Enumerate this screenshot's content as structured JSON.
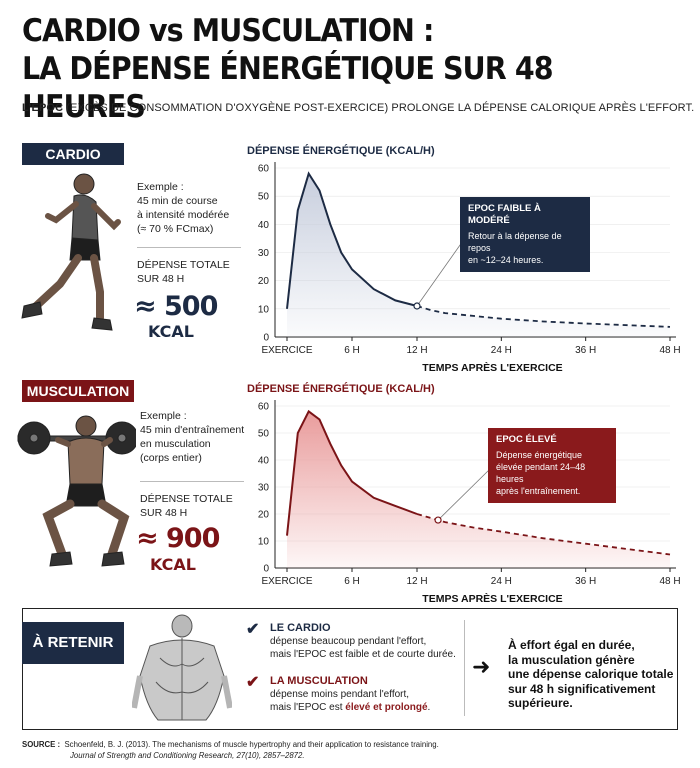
{
  "header": {
    "title_line1": "CARDIO vs MUSCULATION :",
    "title_line2": "LA DÉPENSE ÉNERGÉTIQUE SUR 48 HEURES",
    "subtitle_bold": "L'EPOC",
    "subtitle_rest": " (EXCÈS DE CONSOMMATION D'OXYGÈNE POST-EXERCICE) PROLONGE LA DÉPENSE CALORIQUE APRÈS L'EFFORT."
  },
  "colors": {
    "navy": "#1d2b44",
    "red": "#7b1417",
    "navy_fill": "#c5ccdc",
    "red_fill": "#e89797"
  },
  "cardio": {
    "tag": "CARDIO",
    "example_lines": [
      "Exemple :",
      "45 min de course",
      "à intensité modérée",
      "(≈ 70 % FCmax)"
    ],
    "total_label_lines": [
      "DÉPENSE TOTALE",
      "SUR 48 H"
    ],
    "total_value": "≈ 500",
    "total_unit": "KCAL",
    "illustration": "runner-illustration",
    "callout_title": "EPOC FAIBLE À MODÉRÉ",
    "callout_lines": [
      "Retour à la dépense de repos",
      "en ~12–24 heures."
    ]
  },
  "musculation": {
    "tag": "MUSCULATION",
    "example_lines": [
      "Exemple :",
      "45 min d'entraînement",
      "en musculation",
      "(corps entier)"
    ],
    "total_label_lines": [
      "DÉPENSE TOTALE",
      "SUR 48 H"
    ],
    "total_value": "≈ 900",
    "total_unit": "KCAL",
    "illustration": "squat-illustration",
    "callout_title": "EPOC ÉLEVÉ",
    "callout_lines": [
      "Dépense énergétique",
      "élevée pendant 24–48 heures",
      "après l'entraînement."
    ]
  },
  "chart_data": [
    {
      "type": "area",
      "ylabel": "DÉPENSE ÉNERGÉTIQUE (KCAL/H)",
      "xlabel": "TEMPS APRÈS L'EXERCICE",
      "x_ticks": [
        0,
        6,
        12,
        24,
        36,
        48
      ],
      "x_tick_labels": [
        "EXERCICE",
        "6 H",
        "12 H",
        "24 H",
        "36 H",
        "48 H"
      ],
      "y_ticks": [
        0,
        10,
        20,
        30,
        40,
        50,
        60
      ],
      "ylim": [
        0,
        60
      ],
      "series": [
        {
          "x": [
            0,
            1,
            2,
            3,
            4,
            5,
            6,
            8,
            10,
            12,
            14,
            16,
            20,
            24,
            30,
            36,
            42,
            48
          ],
          "y": [
            10,
            45,
            58,
            52,
            40,
            30,
            24,
            17,
            13,
            11,
            9.5,
            8.5,
            7.5,
            6.5,
            5.5,
            4.8,
            4.2,
            3.6
          ]
        }
      ],
      "solid_until_x": 12,
      "marker_x": 12,
      "color": "#1d2b44"
    },
    {
      "type": "area",
      "ylabel": "DÉPENSE ÉNERGÉTIQUE (KCAL/H)",
      "xlabel": "TEMPS APRÈS L'EXERCICE",
      "x_ticks": [
        0,
        6,
        12,
        24,
        36,
        48
      ],
      "x_tick_labels": [
        "EXERCICE",
        "6 H",
        "12 H",
        "24 H",
        "36 H",
        "48 H"
      ],
      "y_ticks": [
        0,
        10,
        20,
        30,
        40,
        50,
        60
      ],
      "ylim": [
        0,
        60
      ],
      "series": [
        {
          "x": [
            0,
            1,
            2,
            3,
            4,
            5,
            6,
            8,
            10,
            12,
            14,
            16,
            20,
            24,
            30,
            36,
            42,
            48
          ],
          "y": [
            12,
            50,
            58,
            55,
            46,
            38,
            32,
            26,
            23,
            20,
            18.5,
            17,
            15,
            13.5,
            11,
            9,
            7,
            5
          ]
        }
      ],
      "solid_until_x": 12,
      "marker_x": 15,
      "color": "#7b1417"
    }
  ],
  "retenir": {
    "tag": "À RETENIR",
    "illustration": "back-muscles-illustration",
    "point1_title": "LE CARDIO",
    "point1_lines": [
      "dépense beaucoup pendant l'effort,",
      "mais l'EPOC est faible et de courte durée."
    ],
    "point2_title": "LA MUSCULATION",
    "point2_line1": "dépense moins pendant l'effort,",
    "point2_line2_pre": "mais l'EPOC est ",
    "point2_line2_hl": "élevé et prolongé",
    "point2_line2_post": ".",
    "conclusion_lines": [
      "À effort égal en durée,",
      "la musculation génère",
      "une dépense calorique totale",
      "sur 48 h significativement",
      "supérieure."
    ]
  },
  "source": {
    "label": "SOURCE :",
    "line1": "Schoenfeld, B. J. (2013). The mechanisms of muscle hypertrophy and their application to resistance training.",
    "line2": "Journal of Strength and Conditioning Research, 27(10), 2857–2872."
  }
}
